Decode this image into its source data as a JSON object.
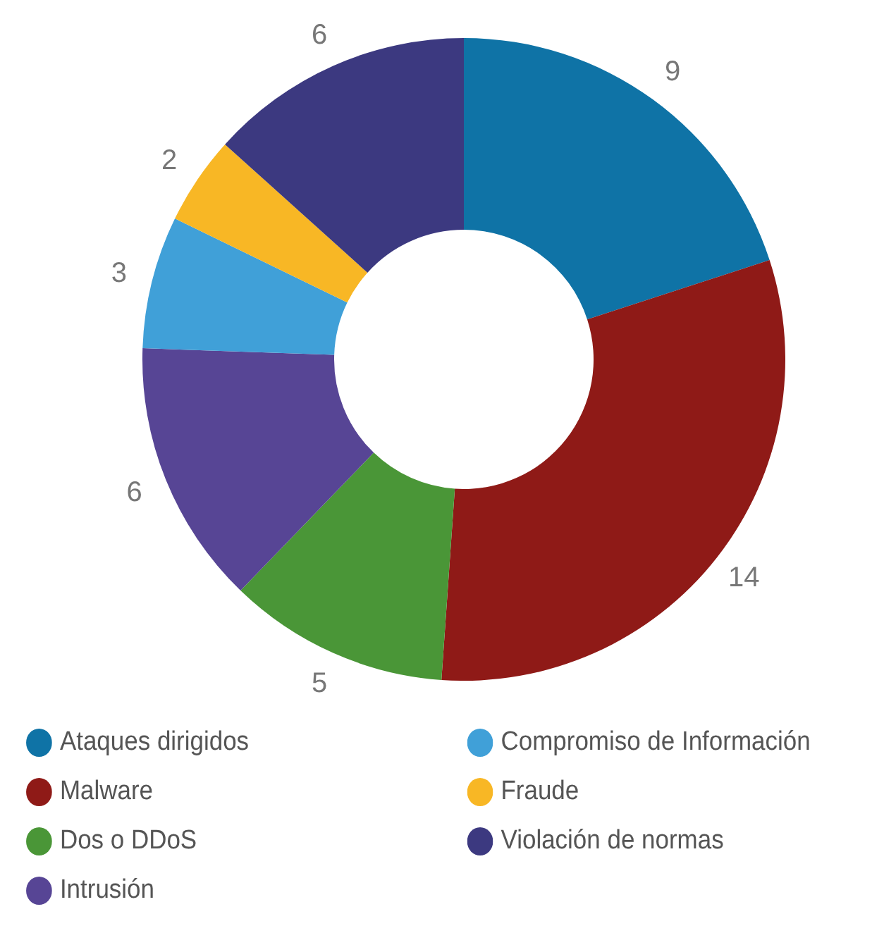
{
  "chart_data": {
    "type": "donut",
    "categories": [
      "Ataques dirigidos",
      "Malware",
      "Dos o DDoS",
      "Intrusión",
      "Compromiso de Información",
      "Fraude",
      "Violación de normas"
    ],
    "values": [
      9,
      14,
      5,
      6,
      3,
      2,
      6
    ],
    "colors": [
      "#0f73a6",
      "#8f1a17",
      "#4a9637",
      "#574595",
      "#40a0d8",
      "#f8b725",
      "#3c3980"
    ],
    "data_labels": true,
    "legend": "bottom"
  }
}
